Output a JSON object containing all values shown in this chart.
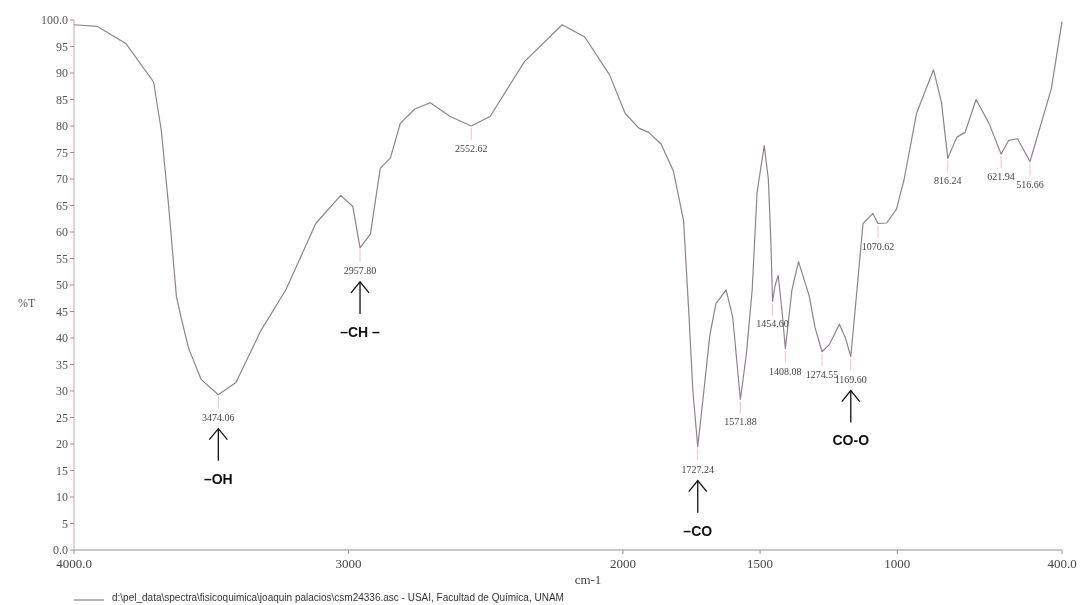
{
  "chart_data": {
    "type": "line",
    "xlabel": "cm-1",
    "ylabel": "%T",
    "xlim": [
      4000,
      400
    ],
    "ylim": [
      0,
      100
    ],
    "xticks": [
      {
        "value": 4000,
        "label": "4000.0"
      },
      3000,
      2000,
      1500,
      1000,
      {
        "value": 400,
        "label": "400.0"
      }
    ],
    "yticks": [
      {
        "value": 0,
        "label": "0.0"
      },
      5,
      10,
      15,
      20,
      25,
      30,
      35,
      40,
      45,
      50,
      55,
      60,
      65,
      70,
      75,
      80,
      85,
      90,
      95,
      {
        "value": 100,
        "label": "100.0"
      }
    ],
    "grid": false,
    "legend": "bottom left",
    "marker": "none",
    "line_style": "solid",
    "series": [
      {
        "name": "d:\\pel_data\\spectra\\fisicoquimica\\joaquin palacios\\csm24336.asc - USAI, Facultad de Química, UNAM",
        "color": "#8e8290",
        "x": [
          4000,
          3916,
          3810,
          3710,
          3682,
          3655,
          3627,
          3610,
          3582,
          3537,
          3474.06,
          3410,
          3319,
          3228,
          3119,
          3028,
          2984,
          2957.8,
          2920,
          2884,
          2847,
          2811,
          2758,
          2702,
          2629,
          2552.62,
          2484,
          2358,
          2221,
          2139,
          2048,
          1992,
          1942,
          1906,
          1861,
          1816,
          1779,
          1760,
          1745,
          1727.24,
          1705,
          1683,
          1661,
          1624,
          1600,
          1571.88,
          1550,
          1529,
          1511,
          1485,
          1470,
          1461,
          1454.6,
          1445,
          1434,
          1420,
          1408.08,
          1395,
          1384,
          1360,
          1321,
          1300,
          1274.55,
          1247,
          1211,
          1189,
          1169.6,
          1147,
          1125,
          1089,
          1070.62,
          1039,
          1003,
          975,
          930,
          868,
          839,
          816.24,
          783,
          753,
          713,
          666,
          621.94,
          594,
          562,
          516.66,
          439,
          400
        ],
        "values": [
          99.1,
          98.8,
          95.5,
          88.3,
          79.2,
          64.8,
          47.9,
          43.9,
          38,
          32.2,
          29.3,
          31.6,
          41.4,
          49.1,
          61.6,
          66.9,
          64.8,
          57,
          59.6,
          72,
          74,
          80.5,
          83.2,
          84.4,
          81.8,
          80,
          81.8,
          92.2,
          99.1,
          96.8,
          89.6,
          82.4,
          79.6,
          78.8,
          76.6,
          71.5,
          62.2,
          45,
          30,
          19.5,
          30,
          40.6,
          46.5,
          49.1,
          44,
          28.4,
          37,
          49,
          67.5,
          76.3,
          70,
          58.4,
          46.9,
          50,
          51.8,
          45,
          38,
          44,
          49.1,
          54.4,
          47.9,
          42,
          37.4,
          38.8,
          42.6,
          40,
          36.5,
          49.1,
          61.6,
          63.5,
          61.6,
          61.7,
          64.3,
          70,
          82.4,
          90.6,
          84.4,
          73.9,
          77.9,
          78.8,
          85,
          80.5,
          74.7,
          77.3,
          77.6,
          73.3,
          87,
          99.7
        ]
      }
    ],
    "annotations": [
      {
        "text": "3474.06",
        "x": 3474.06,
        "y": 29.3
      },
      "–OH",
      {
        "text": "2957.80",
        "x": 2957.8,
        "y": 57
      },
      "–CH –",
      {
        "text": "2552.62",
        "x": 2552.62,
        "y": 80
      },
      {
        "text": "1727.24",
        "x": 1727.24,
        "y": 19.5
      },
      "–CO",
      {
        "text": "1571.88",
        "x": 1571.88,
        "y": 28.4
      },
      {
        "text": "1454.60",
        "x": 1454.6,
        "y": 46.9
      },
      {
        "text": "1408.08",
        "x": 1408.08,
        "y": 38
      },
      {
        "text": "1274.55",
        "x": 1274.55,
        "y": 37.4
      },
      {
        "text": "1169.60",
        "x": 1169.6,
        "y": 36.5
      },
      "CO-O",
      {
        "text": "1070.62",
        "x": 1070.62,
        "y": 61.6
      },
      {
        "text": "816.24",
        "x": 816.24,
        "y": 73.9
      },
      {
        "text": "621.94",
        "x": 621.94,
        "y": 74.7
      },
      {
        "text": "516.66",
        "x": 516.66,
        "y": 73.3
      }
    ]
  }
}
